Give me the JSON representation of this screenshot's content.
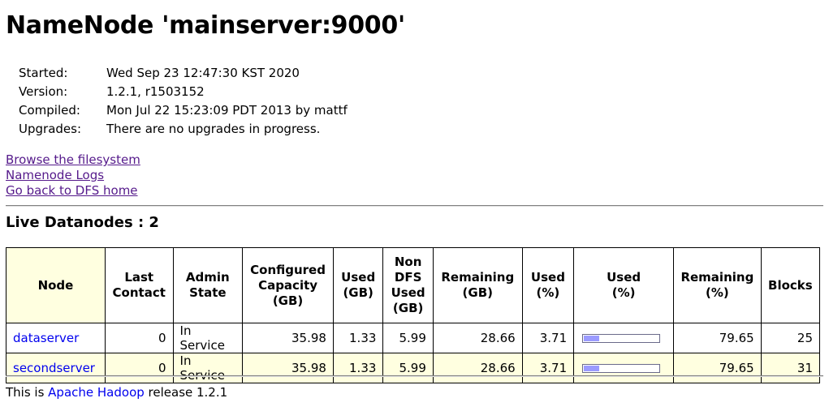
{
  "title": "NameNode 'mainserver:9000'",
  "info": [
    {
      "key": "Started:",
      "value": "Wed Sep 23 12:47:30 KST 2020"
    },
    {
      "key": "Version:",
      "value": "1.2.1, r1503152"
    },
    {
      "key": "Compiled:",
      "value": "Mon Jul 22 15:23:09 PDT 2013 by mattf"
    },
    {
      "key": "Upgrades:",
      "value": "There are no upgrades in progress."
    }
  ],
  "links": [
    "Browse the filesystem",
    "Namenode Logs",
    "Go back to DFS home"
  ],
  "live_heading": "Live Datanodes : 2",
  "table": {
    "headers": {
      "node": "Node",
      "last_contact": "Last Contact",
      "admin_state": "Admin State",
      "configured_capacity": "Configured Capacity (GB)",
      "used_gb": "Used (GB)",
      "non_dfs_used": "Non DFS Used (GB)",
      "remaining_gb": "Remaining (GB)",
      "used_pct": "Used (%)",
      "used_pct_bar": "Used (%)",
      "remaining_pct": "Remaining (%)",
      "blocks": "Blocks"
    },
    "rows": [
      {
        "node": "dataserver",
        "last_contact": "0",
        "admin_state": "In Service",
        "configured_capacity": "35.98",
        "used_gb": "1.33",
        "non_dfs_used": "5.99",
        "remaining_gb": "28.66",
        "used_pct": "3.71",
        "used_fraction": 0.2,
        "remaining_pct": "79.65",
        "blocks": "25"
      },
      {
        "node": "secondserver",
        "last_contact": "0",
        "admin_state": "In Service",
        "configured_capacity": "35.98",
        "used_gb": "1.33",
        "non_dfs_used": "5.99",
        "remaining_gb": "28.66",
        "used_pct": "3.71",
        "used_fraction": 0.2,
        "remaining_pct": "79.65",
        "blocks": "31"
      }
    ]
  },
  "footer": {
    "prefix": "This is ",
    "link": "Apache Hadoop",
    "suffix": " release 1.2.1"
  },
  "colors": {
    "link_visited": "#551a8b",
    "link": "#0000ee",
    "header_highlight": "#ffffe0",
    "bar_fill": "#9b9bff"
  }
}
